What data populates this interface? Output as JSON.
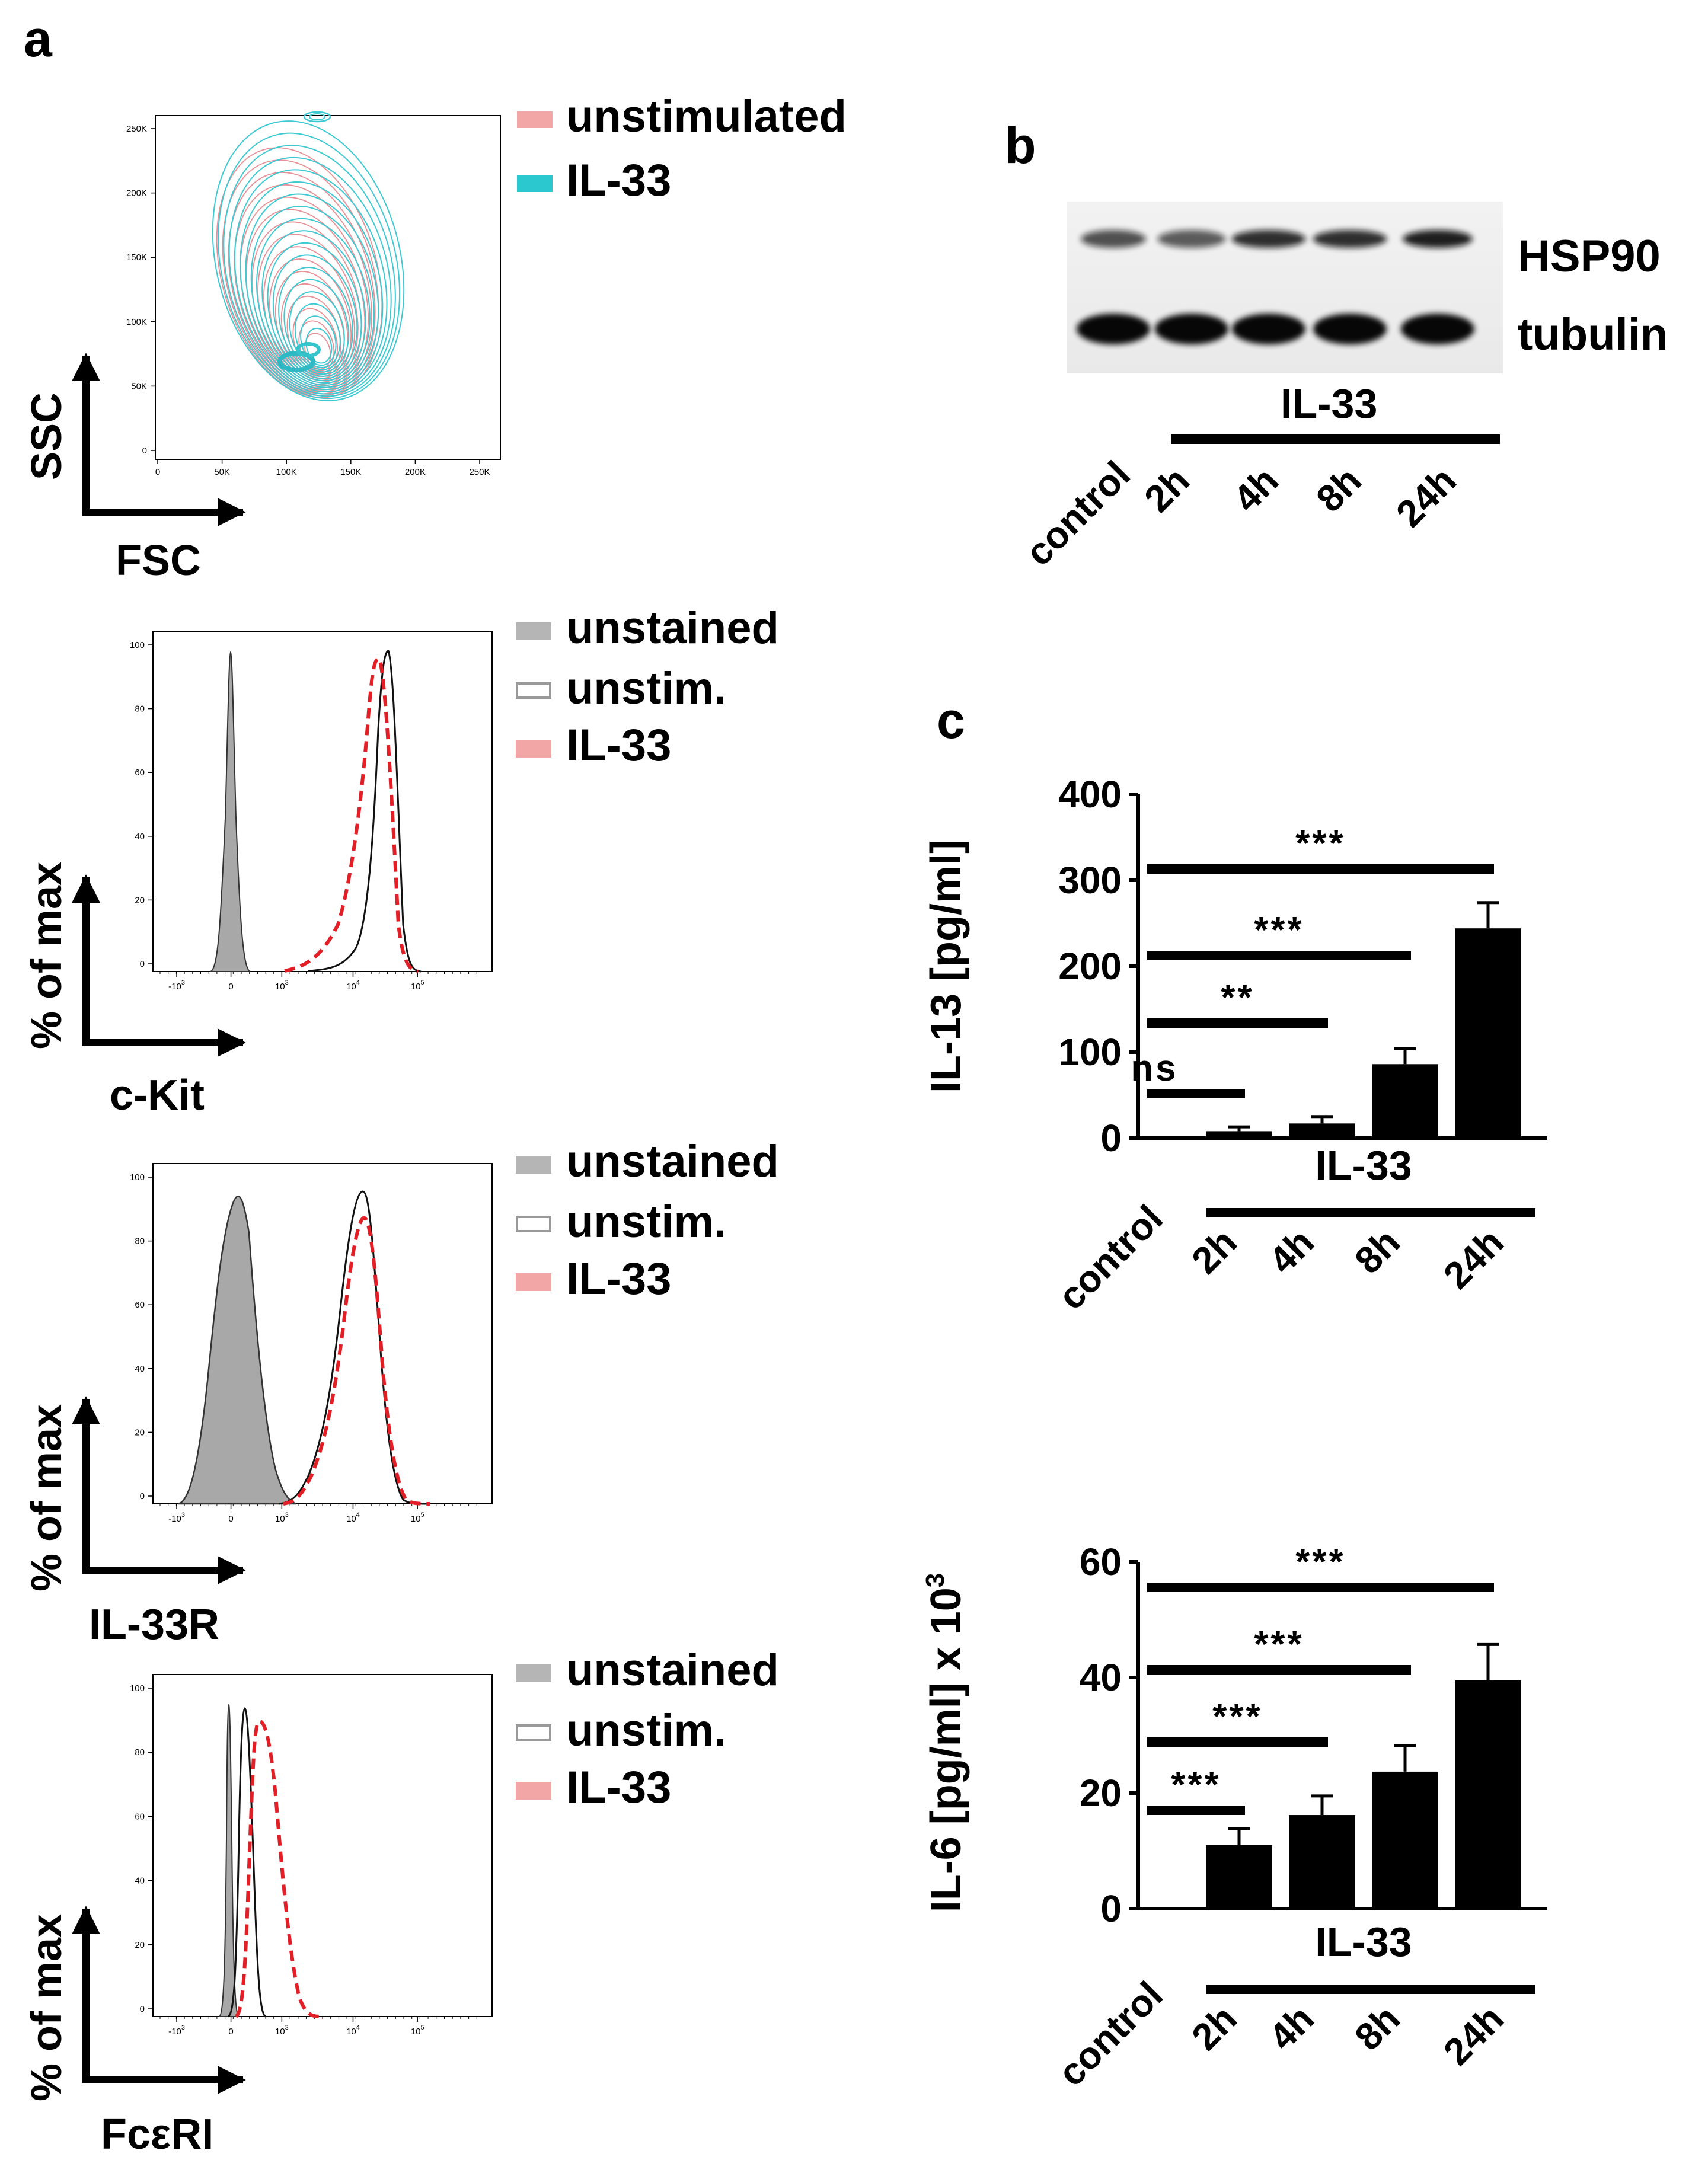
{
  "panels": {
    "a": "a",
    "b": "b",
    "c": "c"
  },
  "facs_scatter": {
    "legend": [
      "unstimulated",
      "IL-33"
    ],
    "legend_colors": [
      "#f3a6a6",
      "#2cc8d0"
    ],
    "x_label": "FSC",
    "y_label": "SSC",
    "x_ticks": [
      "0",
      "50K",
      "100K",
      "150K",
      "200K",
      "250K"
    ],
    "y_ticks": [
      "0",
      "50K",
      "100K",
      "150K",
      "200K",
      "250K"
    ]
  },
  "histograms": [
    {
      "x_label": "c-Kit",
      "y_label": "% of max",
      "legend": [
        "unstained",
        "unstim.",
        "IL-33"
      ]
    },
    {
      "x_label": "IL-33R",
      "y_label": "% of max",
      "legend": [
        "unstained",
        "unstim.",
        "IL-33"
      ]
    },
    {
      "x_label": "FcεRI",
      "y_label": "% of max",
      "legend": [
        "unstained",
        "unstim.",
        "IL-33"
      ]
    }
  ],
  "hist_y_ticks": [
    "0",
    "20",
    "40",
    "60",
    "80",
    "100"
  ],
  "hist_x_ticks": [
    "-10",
    "0",
    "10",
    "10",
    "10"
  ],
  "hist_x_exps": [
    "3",
    "",
    "3",
    "4",
    "5"
  ],
  "western_blot": {
    "bands": [
      "HSP90",
      "tubulin"
    ],
    "group_label": "IL-33",
    "lanes": [
      "control",
      "2h",
      "4h",
      "8h",
      "24h"
    ]
  },
  "chart_data": [
    {
      "type": "bar",
      "title": "",
      "ylabel": "IL-13 [pg/ml]",
      "xlabel": "",
      "categories": [
        "control",
        "2h",
        "4h",
        "8h",
        "24h"
      ],
      "values": [
        0,
        8,
        17,
        86,
        244
      ],
      "errors": [
        0,
        5,
        8,
        18,
        30
      ],
      "ylim": [
        0,
        400
      ],
      "yticks": [
        "0",
        "100",
        "200",
        "300",
        "400"
      ],
      "group_label": "IL-33",
      "significance": [
        {
          "label": "***",
          "from": "control",
          "to": "24h"
        },
        {
          "label": "***",
          "from": "control",
          "to": "8h"
        },
        {
          "label": "**",
          "from": "control",
          "to": "4h"
        },
        {
          "label": "ns",
          "from": "control",
          "to": "2h"
        }
      ]
    },
    {
      "type": "bar",
      "title": "",
      "ylabel": "IL-6 [pg/ml] x 10",
      "ylabel_exp": "3",
      "xlabel": "",
      "categories": [
        "control",
        "2h",
        "4h",
        "8h",
        "24h"
      ],
      "values": [
        0,
        11,
        16.2,
        23.7,
        39.5
      ],
      "errors": [
        0,
        2.8,
        3.3,
        4.5,
        6.2
      ],
      "ylim": [
        0,
        60
      ],
      "yticks": [
        "0",
        "20",
        "40",
        "60"
      ],
      "group_label": "IL-33",
      "significance": [
        {
          "label": "***",
          "from": "control",
          "to": "24h"
        },
        {
          "label": "***",
          "from": "control",
          "to": "8h"
        },
        {
          "label": "***",
          "from": "control",
          "to": "4h"
        },
        {
          "label": "***",
          "from": "control",
          "to": "2h"
        }
      ]
    }
  ]
}
